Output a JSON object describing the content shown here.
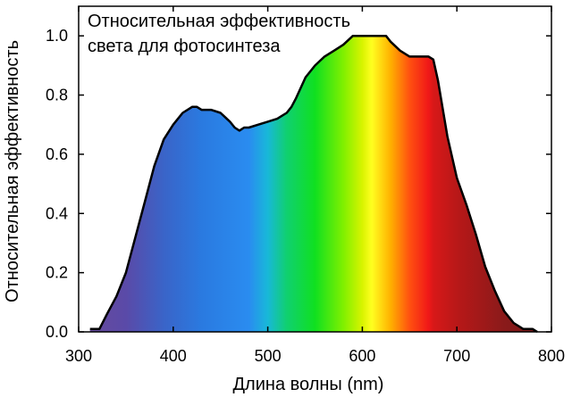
{
  "chart_data": {
    "type": "area",
    "title_lines": [
      "Относительная эффективность",
      "света для фотосинтеза"
    ],
    "xlabel": "Длина волны (nm)",
    "ylabel": "Относительная эффективность",
    "xlim": [
      300,
      800
    ],
    "ylim": [
      0,
      1.1
    ],
    "x_ticks": [
      300,
      400,
      500,
      600,
      700,
      800
    ],
    "y_ticks": [
      0.0,
      0.2,
      0.4,
      0.6,
      0.8,
      1.0
    ],
    "x_tick_labels": [
      "300",
      "400",
      "500",
      "600",
      "700",
      "800"
    ],
    "y_tick_labels": [
      "0.0",
      "0.2",
      "0.4",
      "0.6",
      "0.8",
      "1.0"
    ],
    "grid": false,
    "fill": "visible-spectrum gradient",
    "series": [
      {
        "x": [
          312,
          322,
          330,
          340,
          350,
          360,
          370,
          380,
          390,
          400,
          410,
          420,
          425,
          430,
          440,
          450,
          460,
          465,
          470,
          475,
          480,
          490,
          500,
          510,
          520,
          525,
          530,
          540,
          550,
          560,
          570,
          580,
          590,
          600,
          610,
          620,
          625,
          630,
          640,
          650,
          660,
          670,
          675,
          680,
          690,
          700,
          710,
          720,
          730,
          740,
          750,
          760,
          770,
          780,
          785
        ],
        "y": [
          0.01,
          0.01,
          0.06,
          0.12,
          0.2,
          0.32,
          0.44,
          0.56,
          0.65,
          0.7,
          0.74,
          0.76,
          0.76,
          0.75,
          0.75,
          0.74,
          0.71,
          0.69,
          0.68,
          0.69,
          0.69,
          0.7,
          0.71,
          0.72,
          0.74,
          0.76,
          0.79,
          0.86,
          0.9,
          0.93,
          0.95,
          0.97,
          1.0,
          1.0,
          1.0,
          1.0,
          1.0,
          0.98,
          0.95,
          0.93,
          0.93,
          0.93,
          0.92,
          0.85,
          0.66,
          0.52,
          0.43,
          0.33,
          0.22,
          0.14,
          0.07,
          0.03,
          0.01,
          0.01,
          0.0
        ]
      }
    ]
  }
}
